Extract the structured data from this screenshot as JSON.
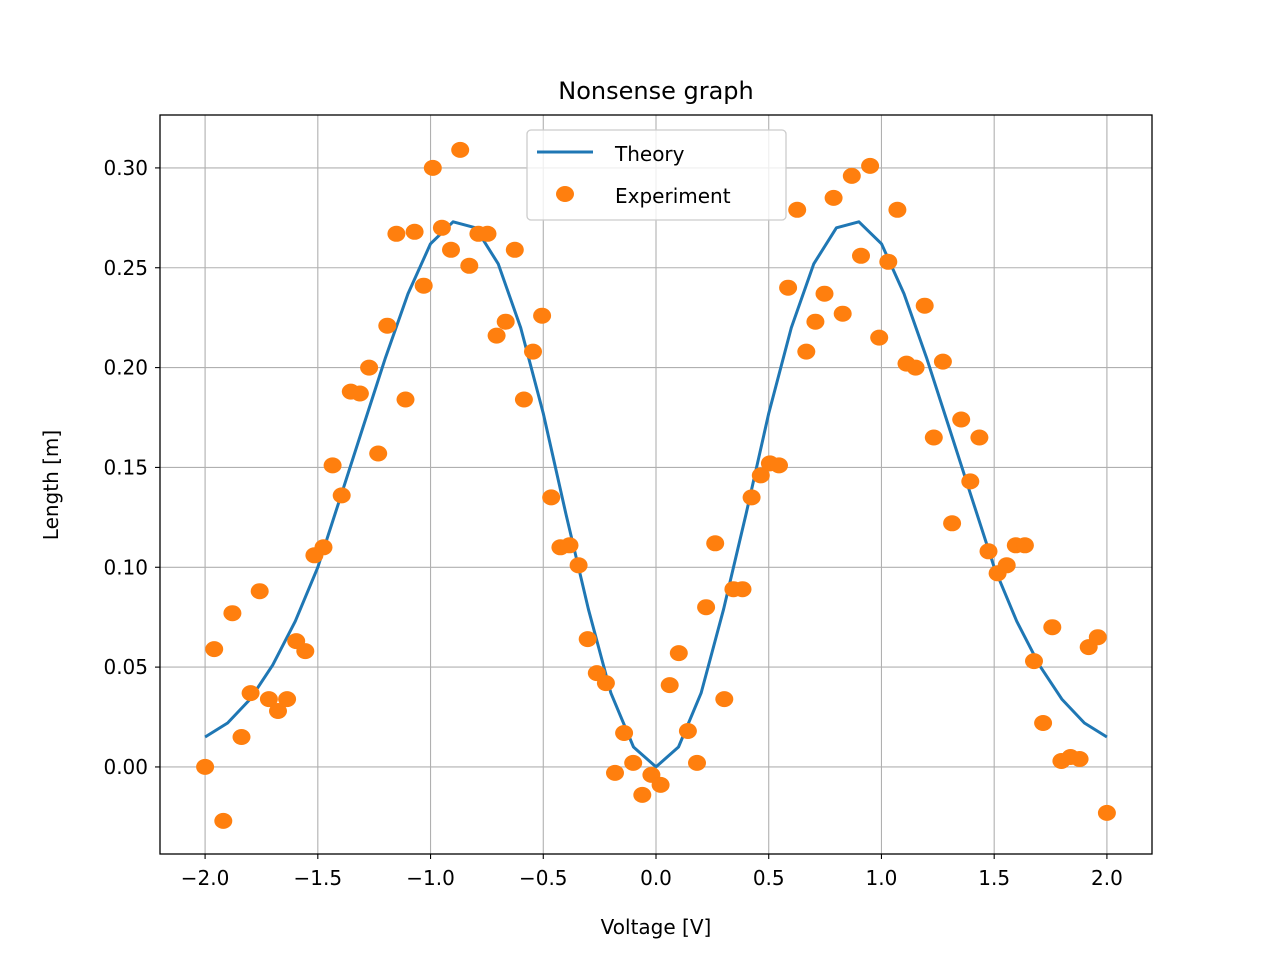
{
  "chart_data": {
    "type": "line+scatter",
    "title": "Nonsense graph",
    "xlabel": "Voltage [V]",
    "ylabel": "Length [m]",
    "xlim": [
      -2.2,
      2.2
    ],
    "ylim": [
      -0.0436,
      0.3265
    ],
    "grid": true,
    "legend_position": "upper-center",
    "xticks": [
      -2.0,
      -1.5,
      -1.0,
      -0.5,
      0.0,
      0.5,
      1.0,
      1.5,
      2.0
    ],
    "xtick_labels": [
      "−2.0",
      "−1.5",
      "−1.0",
      "−0.5",
      "0.0",
      "0.5",
      "1.0",
      "1.5",
      "2.0"
    ],
    "yticks": [
      0.0,
      0.05,
      0.1,
      0.15,
      0.2,
      0.25,
      0.3
    ],
    "ytick_labels": [
      "0.00",
      "0.05",
      "0.10",
      "0.15",
      "0.20",
      "0.25",
      "0.30"
    ],
    "series": [
      {
        "name": "Theory",
        "kind": "line",
        "color": "#1f77b4",
        "x": [
          -2.0,
          -1.9,
          -1.8,
          -1.7,
          -1.6,
          -1.5,
          -1.4,
          -1.3,
          -1.2,
          -1.1,
          -1.0,
          -0.9,
          -0.8,
          -0.7,
          -0.6,
          -0.5,
          -0.4,
          -0.3,
          -0.2,
          -0.1,
          0.0,
          0.1,
          0.2,
          0.3,
          0.4,
          0.5,
          0.6,
          0.7,
          0.8,
          0.9,
          1.0,
          1.1,
          1.2,
          1.3,
          1.4,
          1.5,
          1.6,
          1.7,
          1.8,
          1.9,
          2.0
        ],
        "y": [
          0.015,
          0.022,
          0.034,
          0.051,
          0.073,
          0.1,
          0.135,
          0.17,
          0.205,
          0.237,
          0.262,
          0.273,
          0.27,
          0.252,
          0.22,
          0.177,
          0.127,
          0.079,
          0.037,
          0.01,
          0.0,
          0.01,
          0.037,
          0.079,
          0.127,
          0.177,
          0.22,
          0.252,
          0.27,
          0.273,
          0.262,
          0.237,
          0.205,
          0.17,
          0.135,
          0.1,
          0.073,
          0.051,
          0.034,
          0.022,
          0.015
        ]
      },
      {
        "name": "Experiment",
        "kind": "scatter",
        "color": "#ff7f0e",
        "x_range": [
          -2.0,
          2.0
        ],
        "count": 100,
        "y": [
          0.0,
          0.059,
          -0.027,
          0.077,
          0.015,
          0.037,
          0.088,
          0.034,
          0.028,
          0.034,
          0.063,
          0.058,
          0.106,
          0.11,
          0.151,
          0.136,
          0.188,
          0.187,
          0.2,
          0.157,
          0.221,
          0.267,
          0.184,
          0.268,
          0.241,
          0.3,
          0.27,
          0.259,
          0.309,
          0.251,
          0.267,
          0.267,
          0.216,
          0.223,
          0.259,
          0.184,
          0.208,
          0.226,
          0.135,
          0.11,
          0.111,
          0.101,
          0.064,
          0.047,
          0.042,
          -0.003,
          0.017,
          0.002,
          -0.014,
          -0.004,
          -0.009,
          0.041,
          0.057,
          0.018,
          0.002,
          0.08,
          0.112,
          0.034,
          0.089,
          0.089,
          0.135,
          0.146,
          0.152,
          0.151,
          0.24,
          0.279,
          0.208,
          0.223,
          0.237,
          0.285,
          0.227,
          0.296,
          0.256,
          0.301,
          0.215,
          0.253,
          0.279,
          0.202,
          0.2,
          0.231,
          0.165,
          0.203,
          0.122,
          0.174,
          0.143,
          0.165,
          0.108,
          0.097,
          0.101,
          0.111,
          0.111,
          0.053,
          0.022,
          0.07,
          0.003,
          0.005,
          0.004,
          0.06,
          0.065,
          -0.023
        ]
      }
    ]
  }
}
